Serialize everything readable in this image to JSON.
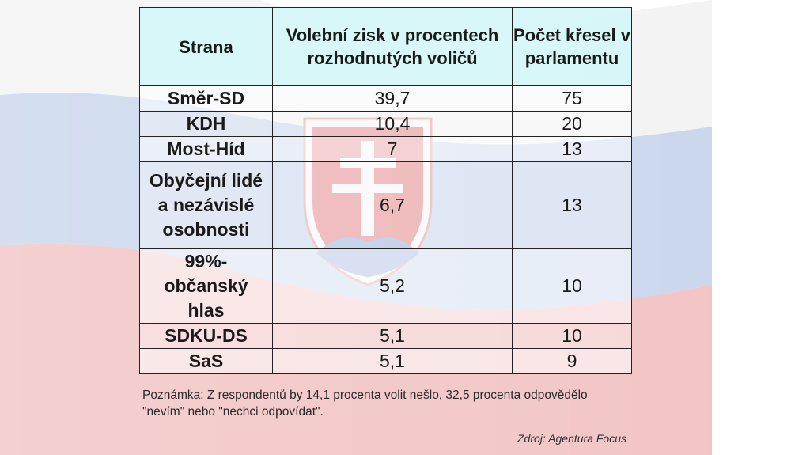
{
  "table": {
    "headers": [
      "Strana",
      "Volební zisk v procentech rozhodnutých voličů",
      "Počet křesel v parlamentu"
    ],
    "rows": [
      {
        "party": "Směr-SD",
        "percent": "39,7",
        "seats": "75"
      },
      {
        "party": "KDH",
        "percent": "10,4",
        "seats": "20"
      },
      {
        "party": "Most-Híd",
        "percent": "7",
        "seats": "13"
      },
      {
        "party": "Obyčejní lidé a nezávislé osobnosti",
        "percent": "6,7",
        "seats": "13"
      },
      {
        "party": "99%- občanský hlas",
        "percent": "5,2",
        "seats": "10"
      },
      {
        "party": "SDKU-DS",
        "percent": "5,1",
        "seats": "10"
      },
      {
        "party": "SaS",
        "percent": "5,1",
        "seats": "9"
      }
    ]
  },
  "note": "Poznámka: Z respondentů by 14,1 procenta volit nešlo, 32,5 procenta odpovědělo \"nevím\" nebo \"nechci odpovídat\".",
  "source": "Zdroj: Agentura Focus",
  "colors": {
    "header_bg": "#d4f6f8",
    "flag_white": "#f5f5f5",
    "flag_blue": "#c9d6ec",
    "flag_red": "#f2c4c4",
    "emblem_red": "#e58f92",
    "emblem_blue": "#9fb2dc"
  }
}
